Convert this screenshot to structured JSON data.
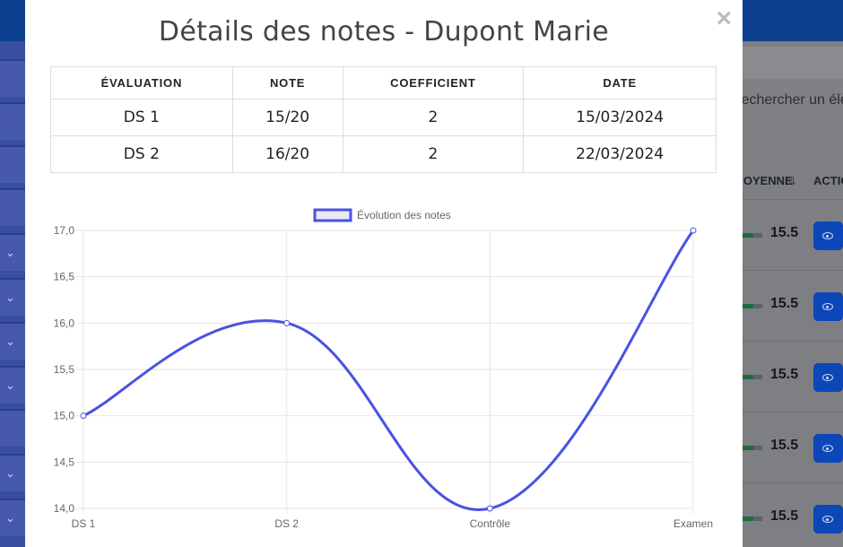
{
  "background": {
    "search_placeholder": "Rechercher un élève...",
    "columns": {
      "average": "MOYENNE",
      "sort_icon": "sort-arrows-icon",
      "actions": "ACTIONS"
    },
    "rows": [
      {
        "average": "15.5"
      },
      {
        "average": "15.5"
      },
      {
        "average": "15.5"
      },
      {
        "average": "15.5"
      },
      {
        "average": "15.5"
      }
    ]
  },
  "modal": {
    "title": "Détails des notes - Dupont Marie",
    "close_label": "×",
    "table": {
      "headers": [
        "ÉVALUATION",
        "NOTE",
        "COEFFICIENT",
        "DATE"
      ],
      "rows": [
        [
          "DS 1",
          "15/20",
          "2",
          "15/03/2024"
        ],
        [
          "DS 2",
          "16/20",
          "2",
          "22/03/2024"
        ]
      ]
    }
  },
  "chart_data": {
    "type": "line",
    "categories": [
      "DS 1",
      "DS 2",
      "Contrôle",
      "Examen"
    ],
    "series": [
      {
        "name": "Évolution des notes",
        "values": [
          15.0,
          16.0,
          14.0,
          17.0
        ],
        "color": "#4a51e4"
      }
    ],
    "yticks": [
      "14,0",
      "14,5",
      "15,0",
      "15,5",
      "16,0",
      "16,5",
      "17,0"
    ],
    "ylim": [
      14.0,
      17.0
    ],
    "grid": true,
    "legend": "top-center"
  }
}
